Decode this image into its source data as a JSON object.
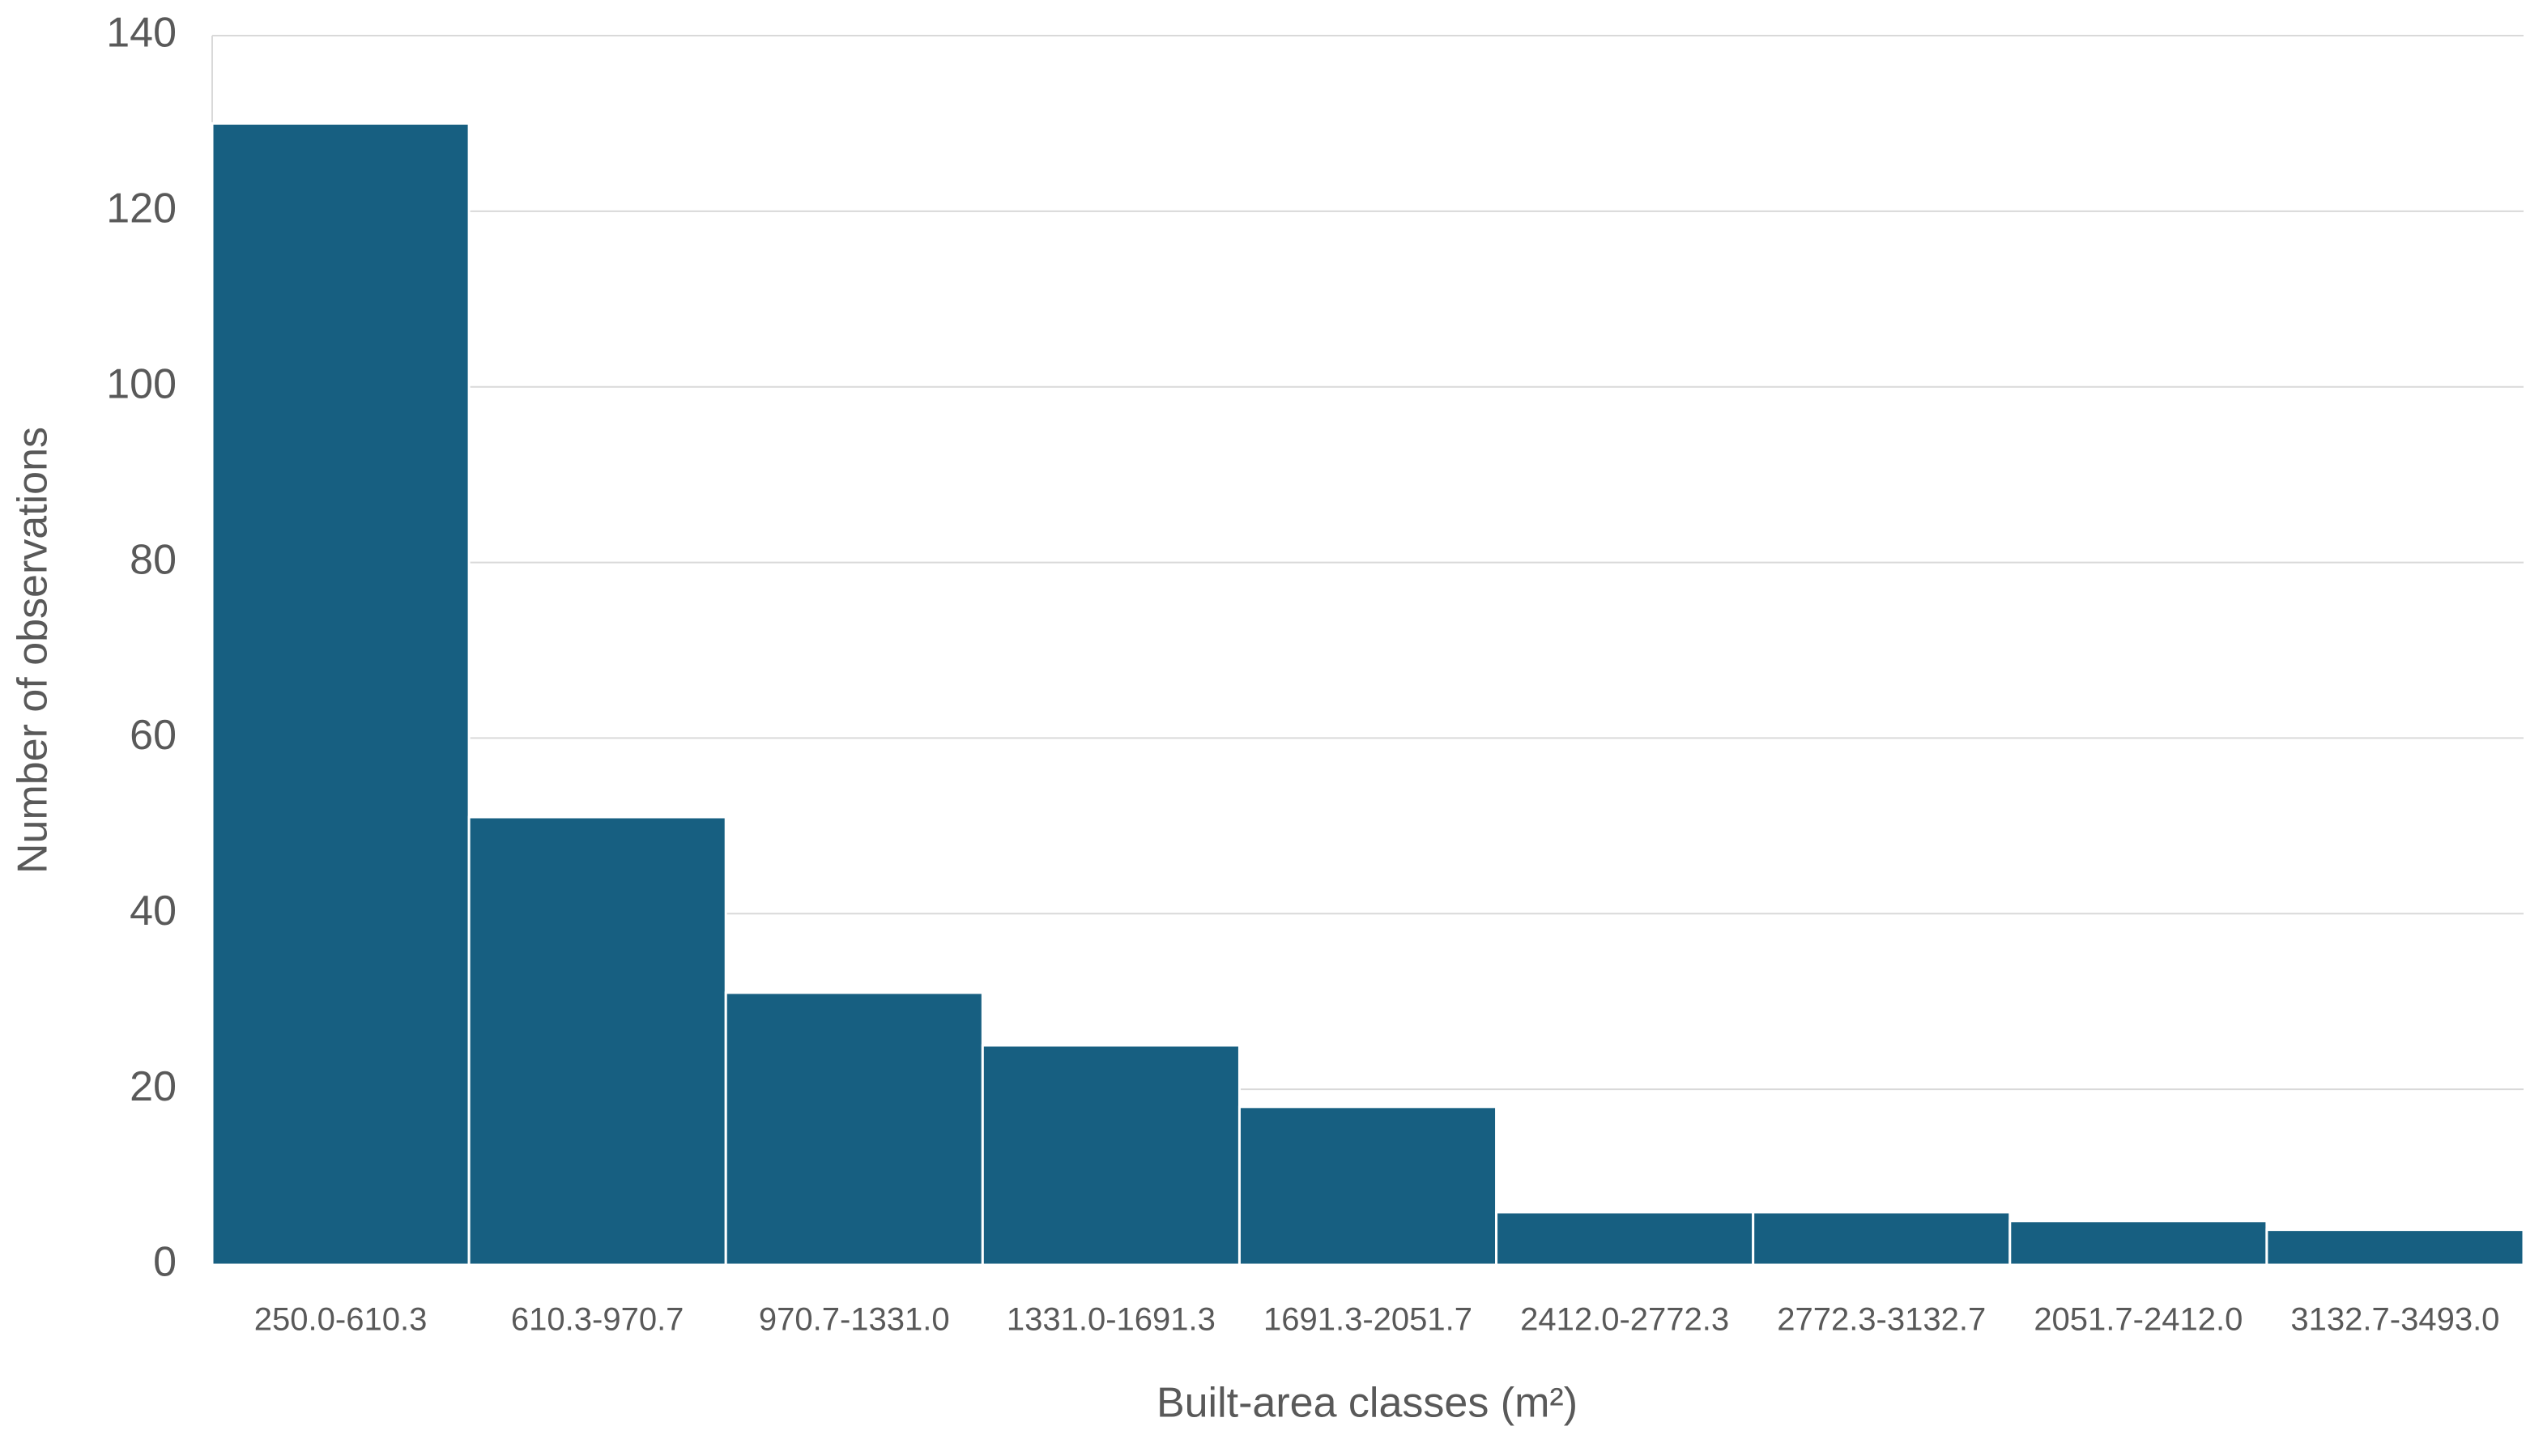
{
  "chart_data": {
    "type": "bar",
    "x_label": "Built-area classes (m²)",
    "y_label": "Number of observations",
    "categories": [
      "250.0-610.3",
      "610.3-970.7",
      "970.7-1331.0",
      "1331.0-1691.3",
      "1691.3-2051.7",
      "2412.0-2772.3",
      "2772.3-3132.7",
      "2051.7-2412.0",
      "3132.7-3493.0"
    ],
    "values": [
      130,
      51,
      31,
      25,
      18,
      6,
      6,
      5,
      4
    ],
    "color": "#175f81",
    "ylim": [
      0,
      140
    ],
    "yticks": [
      0,
      20,
      40,
      60,
      80,
      100,
      120,
      140
    ],
    "grid": true
  }
}
